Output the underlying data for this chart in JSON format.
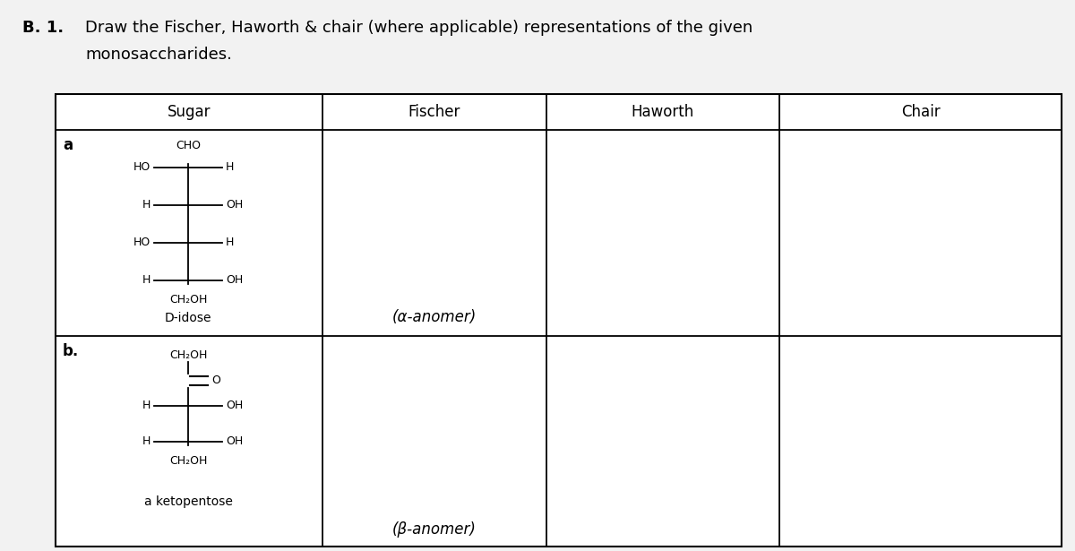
{
  "bg_color": "#f2f2f2",
  "title_b": "B. 1.",
  "title_text1": "Draw the Fischer, Haworth & chair (where applicable) representations of the given",
  "title_text2": "monosaccharides.",
  "col_headers": [
    "Sugar",
    "Fischer",
    "Haworth",
    "Chair"
  ],
  "sugar_a_label": "a",
  "sugar_a_name": "D-idose",
  "sugar_a_anomer": "(α-anomer)",
  "sugar_b_label": "b.",
  "sugar_b_name": "a ketopentose",
  "sugar_b_anomer": "(β-anomer)",
  "font_size_title": 13,
  "font_size_header": 12,
  "font_size_label": 12,
  "font_size_chem": 9,
  "font_size_anomer": 12
}
